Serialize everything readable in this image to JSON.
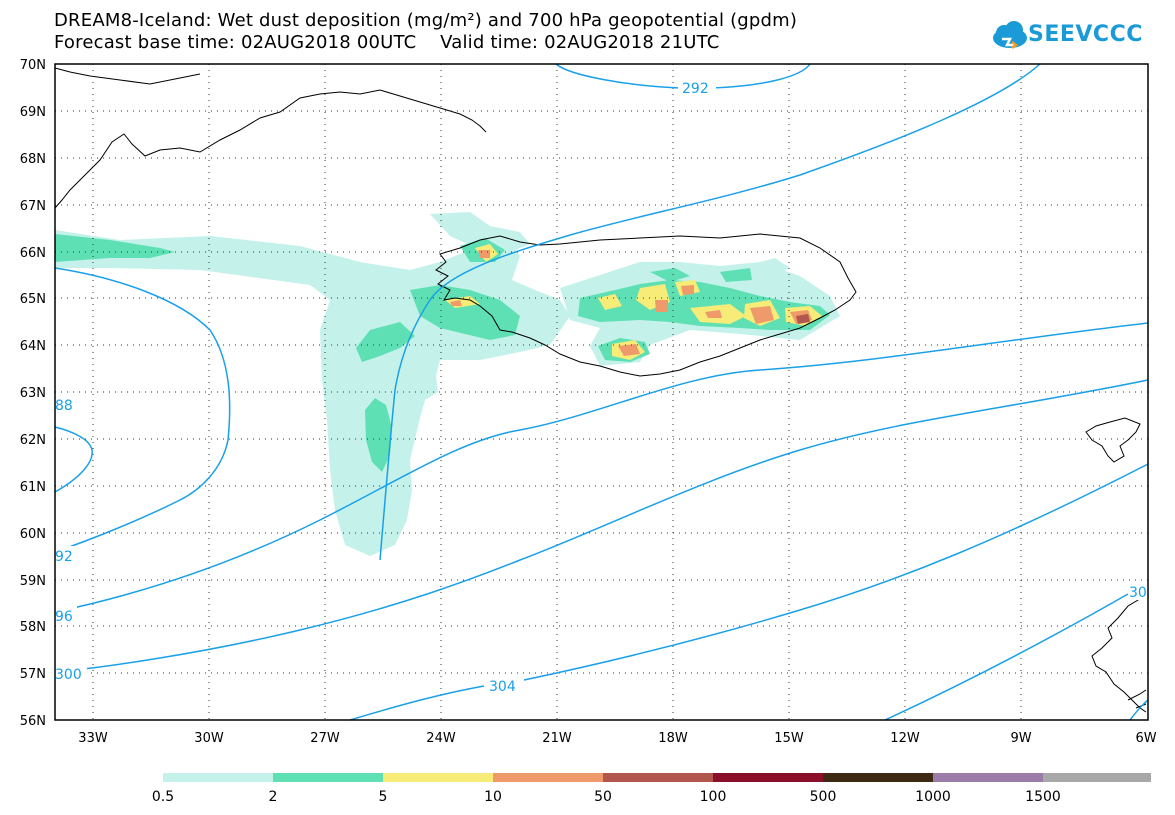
{
  "title": {
    "line1": "DREAM8-Iceland: Wet dust deposition (mg/m²) and 700 hPa geopotential (gpdm)",
    "line2": "Forecast base time: 02AUG2018 00UTC    Valid time: 02AUG2018 21UTC"
  },
  "logo": {
    "text": "SEEVCCC",
    "icon": "cloud-icon",
    "color": "#1a9ad6"
  },
  "map": {
    "lat_labels": [
      "70N",
      "69N",
      "68N",
      "67N",
      "66N",
      "65N",
      "64N",
      "63N",
      "62N",
      "61N",
      "60N",
      "59N",
      "58N",
      "57N",
      "56N"
    ],
    "lon_labels": [
      "33W",
      "30W",
      "27W",
      "24W",
      "21W",
      "18W",
      "15W",
      "12W",
      "9W",
      "6W"
    ],
    "contour_color": "#1aa0e8",
    "contour_labels": [
      "292",
      "88",
      "92",
      "96",
      "300",
      "304",
      "30"
    ]
  },
  "legend": {
    "colors": [
      "#c4f2ea",
      "#5ee0b4",
      "#f7ec78",
      "#ee9a6a",
      "#b2574e",
      "#8c0f2a",
      "#3d2914",
      "#9b7ba7",
      "#a8a8a8"
    ],
    "labels": [
      "0.5",
      "2",
      "5",
      "10",
      "50",
      "100",
      "500",
      "1000",
      "1500"
    ]
  }
}
